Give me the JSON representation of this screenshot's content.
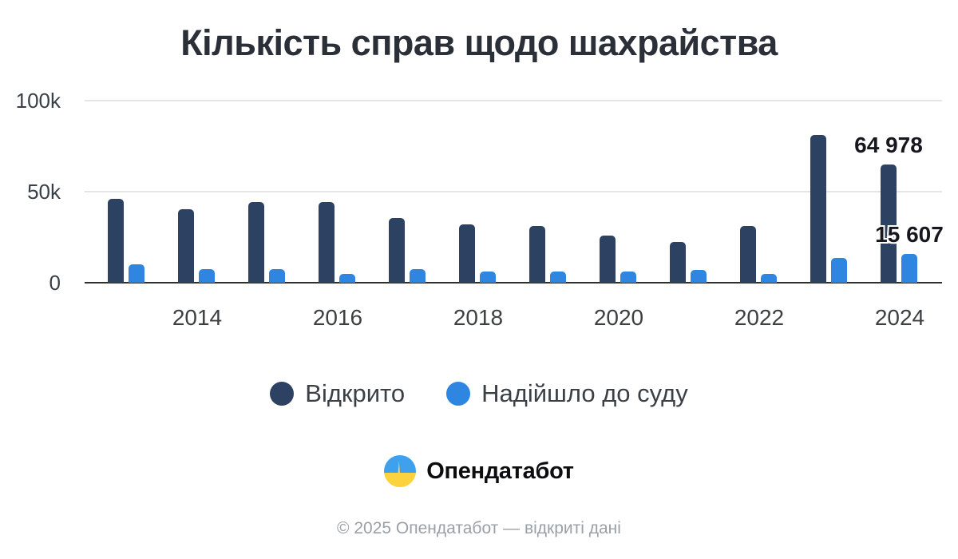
{
  "title": "Кількість справ щодо шахрайства",
  "chart_data": {
    "type": "bar",
    "categories": [
      "2013",
      "2014",
      "2015",
      "2016",
      "2017",
      "2018",
      "2019",
      "2020",
      "2021",
      "2022",
      "2023",
      "2024"
    ],
    "series": [
      {
        "name": "Відкрито",
        "color": "#2d4163",
        "values": [
          46000,
          40500,
          44500,
          44500,
          35500,
          32000,
          31000,
          26000,
          22500,
          31000,
          81000,
          64978
        ]
      },
      {
        "name": "Надійшло до суду",
        "color": "#2e86e0",
        "values": [
          10000,
          7500,
          7500,
          5000,
          7500,
          6000,
          6000,
          6000,
          7000,
          5000,
          13500,
          15607
        ]
      }
    ],
    "ylim": [
      0,
      100000
    ],
    "yticks": [
      {
        "value": 0,
        "label": "0"
      },
      {
        "value": 50000,
        "label": "50k"
      },
      {
        "value": 100000,
        "label": "100k"
      }
    ],
    "xtick_labels": [
      "2014",
      "2016",
      "2018",
      "2020",
      "2022",
      "2024"
    ],
    "annotations": [
      {
        "text": "64 978",
        "series": "Відкрито",
        "category": "2024"
      },
      {
        "text": "15 607",
        "series": "Надійшло до суду",
        "category": "2024"
      }
    ],
    "grid": true,
    "legend_position": "bottom"
  },
  "branding": {
    "logo_icon": "opendatabot-pulse-icon",
    "logo_text": "Опендатабот",
    "logo_colors": {
      "blue": "#3fa1ee",
      "yellow": "#fdd23f"
    }
  },
  "footer": {
    "copyright": "© 2025 Опендатабот — відкриті дані"
  }
}
